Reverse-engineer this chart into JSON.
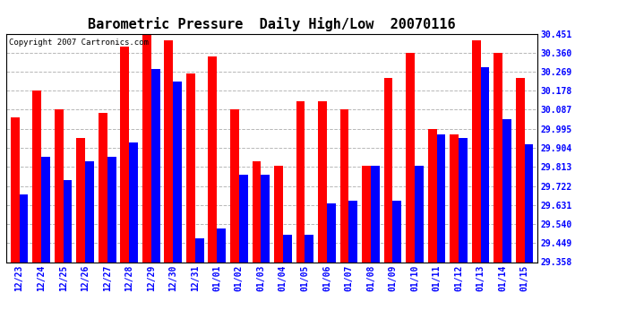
{
  "title": "Barometric Pressure  Daily High/Low  20070116",
  "copyright": "Copyright 2007 Cartronics.com",
  "dates": [
    "12/23",
    "12/24",
    "12/25",
    "12/26",
    "12/27",
    "12/28",
    "12/29",
    "12/30",
    "12/31",
    "01/01",
    "01/02",
    "01/03",
    "01/04",
    "01/05",
    "01/06",
    "01/07",
    "01/08",
    "01/09",
    "01/10",
    "01/11",
    "01/12",
    "01/13",
    "01/14",
    "01/15"
  ],
  "highs": [
    30.05,
    30.178,
    30.087,
    29.95,
    30.07,
    30.39,
    30.451,
    30.42,
    30.26,
    30.34,
    30.09,
    29.84,
    29.82,
    30.128,
    30.128,
    30.087,
    29.82,
    30.24,
    30.36,
    29.995,
    29.97,
    30.42,
    30.36,
    30.24
  ],
  "lows": [
    29.68,
    29.86,
    29.75,
    29.84,
    29.86,
    29.93,
    30.28,
    30.22,
    29.47,
    29.52,
    29.775,
    29.775,
    29.49,
    29.49,
    29.64,
    29.65,
    29.82,
    29.65,
    29.82,
    29.97,
    29.95,
    30.29,
    30.04,
    29.92
  ],
  "high_color": "#ff0000",
  "low_color": "#0000ff",
  "bg_color": "#ffffff",
  "grid_color": "#b0b0b0",
  "ymin": 29.358,
  "ymax": 30.451,
  "yticks": [
    29.358,
    29.449,
    29.54,
    29.631,
    29.722,
    29.813,
    29.904,
    29.995,
    30.087,
    30.178,
    30.269,
    30.36,
    30.451
  ],
  "title_fontsize": 11,
  "copyright_fontsize": 6.5,
  "tick_fontsize": 7,
  "bar_width": 0.4
}
